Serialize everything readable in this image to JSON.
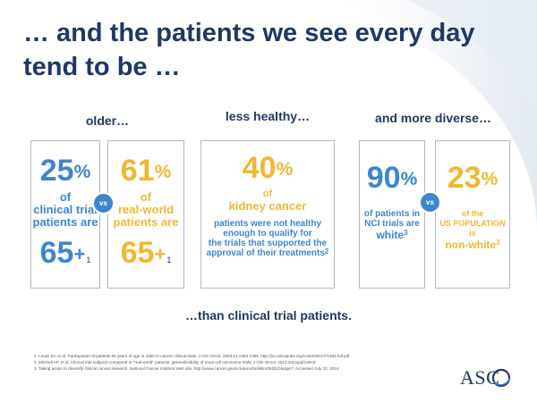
{
  "title": "… and the patients we see every day tend to be …",
  "headers": {
    "older": "older…",
    "less_healthy": "less healthy…",
    "diverse": "and more diverse…"
  },
  "vs_label": "vs",
  "boxes": {
    "clinical_trial": {
      "percent": "25",
      "unit": "%",
      "label_lines": [
        "of",
        "clinical trial",
        "patients are"
      ],
      "age": "65",
      "plus": "+",
      "footnote": "1"
    },
    "real_world": {
      "percent": "61",
      "unit": "%",
      "label_lines": [
        "of",
        "real-world",
        "patients are"
      ],
      "age": "65",
      "plus": "+",
      "footnote": "1"
    },
    "kidney": {
      "percent": "40",
      "unit": "%",
      "label_lines": [
        "of",
        "kidney cancer"
      ],
      "desc_lines": [
        "patients were not healthy",
        "enough to qualify for",
        "the trials that supported the",
        "approval of their treatments"
      ],
      "footnote": "2"
    },
    "nci": {
      "percent": "90",
      "unit": "%",
      "label_lines": [
        "of patients in",
        "NCI trials are"
      ],
      "emph": "white",
      "footnote": "3"
    },
    "us_pop": {
      "percent": "23",
      "unit": "%",
      "label_lines": [
        "of the",
        "US POPULATION",
        "is"
      ],
      "emph": "non-white",
      "footnote": "3"
    }
  },
  "bottom_line": "…than clinical trial patients.",
  "references": [
    "1. Lewis JH, et al. Participation of patients 65 years of age or older in cancer clinical trials. J Clin Oncol. 2003;21:1383-1389. http://jco.ascopubs.org/content/21/7/1383.full.pdf.",
    "2. Mitchell AP, et al. Clinical trial subjects compared to \"real world\" patients: generalizability of renal cell carcinoma trials. J Clin Oncol. 2014;32(suppl):6510.",
    "3. Taking action to diversify clinical cancer research. National Cancer Institute Web site. http://www.cancer.gov/ncicancerbulletin/051810/page7. Accessed July 23, 2014."
  ],
  "logo": {
    "text": "ASC"
  },
  "colors": {
    "navy": "#1f3864",
    "blue": "#3c86cf",
    "gold": "#f2b731",
    "border": "#aeb9c8"
  }
}
